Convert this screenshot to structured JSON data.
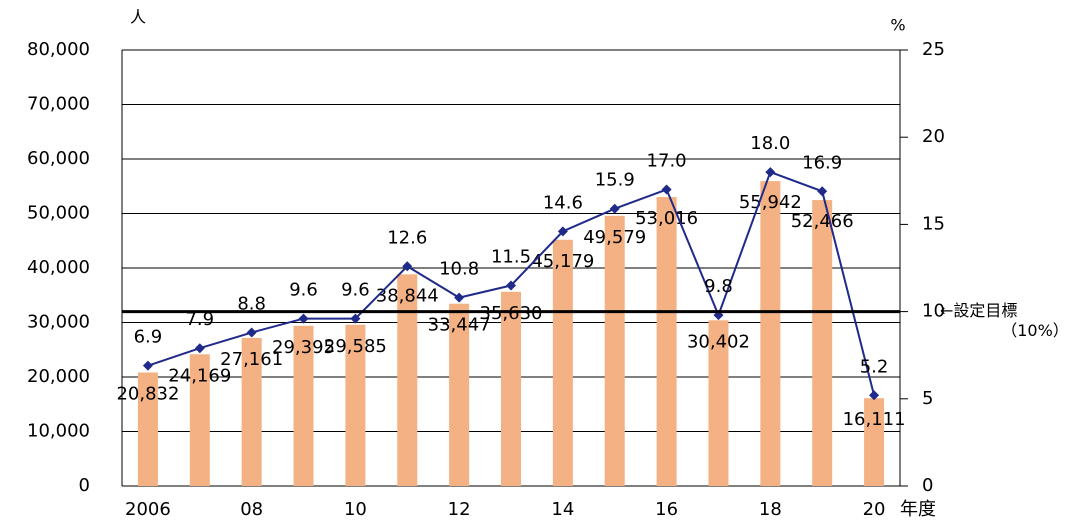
{
  "chart_data": {
    "type": "bar-line",
    "y_label": "人",
    "y2_label": "%",
    "x_label": "年度",
    "categories": [
      "2006",
      null,
      "08",
      null,
      "10",
      null,
      "12",
      null,
      "14",
      null,
      "16",
      null,
      "18",
      null,
      "20"
    ],
    "series": [
      {
        "type": "bar",
        "color": "#f4b183",
        "values": [
          20832,
          24169,
          27161,
          29395,
          29585,
          38844,
          33447,
          35630,
          45179,
          49579,
          53016,
          30402,
          55942,
          52466,
          16111
        ],
        "value_labels": [
          "20,832",
          "24,169",
          "27,161",
          "29,395",
          "29,585",
          "38,844",
          "33,447",
          "35,630",
          "45,179",
          "49,579",
          "53,016",
          "30,402",
          "55,942",
          "52,466",
          "16,111"
        ]
      },
      {
        "type": "line",
        "axis": "y2",
        "color": "#1f2a8a",
        "values": [
          6.9,
          7.9,
          8.8,
          9.6,
          9.6,
          12.6,
          10.8,
          11.5,
          14.6,
          15.9,
          17.0,
          9.8,
          18.0,
          16.9,
          5.2
        ],
        "value_labels": [
          "6.9",
          "7.9",
          "8.8",
          "9.6",
          "9.6",
          "12.6",
          "10.8",
          "11.5",
          "14.6",
          "15.9",
          "17.0",
          "9.8",
          "18.0",
          "16.9",
          "5.2"
        ]
      }
    ],
    "ylim": [
      0,
      80000
    ],
    "yticks": [
      0,
      {
        "value": 10000,
        "label": "10,000"
      },
      {
        "value": 20000,
        "label": "20,000"
      },
      {
        "value": 30000,
        "label": "30,000"
      },
      {
        "value": 40000,
        "label": "40,000"
      },
      {
        "value": 50000,
        "label": "50,000"
      },
      {
        "value": 60000,
        "label": "60,000"
      },
      {
        "value": 70000,
        "label": "70,000"
      },
      {
        "value": 80000,
        "label": "80,000"
      }
    ],
    "y2lim": [
      0,
      25
    ],
    "y2ticks": [
      0,
      5,
      10,
      15,
      20,
      25
    ],
    "target": {
      "value": 10,
      "label": "←設定目標",
      "note": "（10%）"
    },
    "grid": true
  }
}
